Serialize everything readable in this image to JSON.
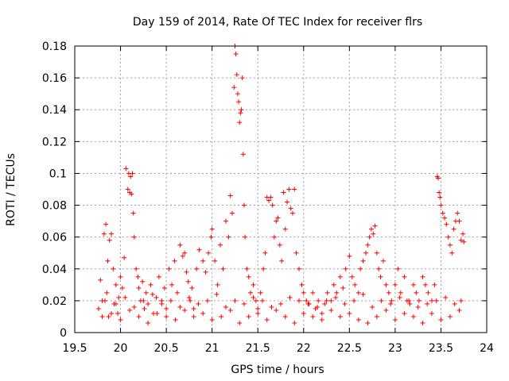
{
  "chart_data": {
    "type": "scatter",
    "title": "Day 159 of 2014, Rate Of TEC Index for receiver flrs",
    "xlabel": "GPS time / hours",
    "ylabel": "ROTI / TECUs",
    "xlim": [
      19.5,
      24
    ],
    "ylim": [
      0,
      0.18
    ],
    "x_ticks": [
      19.5,
      20,
      20.5,
      21,
      21.5,
      22,
      22.5,
      23,
      23.5,
      24
    ],
    "x_tick_labels": [
      "19.5",
      "20",
      "20.5",
      "21",
      "21.5",
      "22",
      "22.5",
      "23",
      "23.5",
      "24"
    ],
    "y_ticks": [
      0,
      0.02,
      0.04,
      0.06,
      0.08,
      0.1,
      0.12,
      0.14,
      0.16,
      0.18
    ],
    "y_tick_labels": [
      "0",
      "0.02",
      "0.04",
      "0.06",
      "0.08",
      "0.1",
      "0.12",
      "0.14",
      "0.16",
      "0.18"
    ],
    "grid": true,
    "marker": "+",
    "color": "#ff0000",
    "series": [
      {
        "name": "ROTI",
        "x": [
          19.76,
          19.78,
          19.8,
          19.82,
          19.84,
          19.85,
          19.86,
          19.87,
          19.88,
          19.9,
          19.92,
          19.93,
          19.95,
          19.97,
          19.98,
          20.0,
          20.02,
          20.04,
          20.06,
          20.08,
          20.09,
          20.1,
          20.11,
          20.12,
          20.13,
          20.14,
          20.15,
          20.17,
          20.19,
          20.2,
          20.22,
          20.24,
          20.26,
          20.28,
          20.3,
          20.33,
          20.36,
          20.39,
          20.42,
          20.45,
          20.48,
          20.5,
          20.53,
          20.56,
          20.59,
          20.62,
          20.65,
          20.68,
          20.7,
          20.72,
          20.74,
          20.76,
          20.78,
          20.8,
          20.83,
          20.86,
          20.9,
          20.93,
          20.96,
          20.99,
          21.0,
          21.03,
          21.06,
          21.09,
          21.12,
          21.15,
          21.18,
          21.2,
          21.22,
          21.24,
          21.25,
          21.26,
          21.27,
          21.28,
          21.29,
          21.3,
          21.31,
          21.32,
          21.33,
          21.34,
          21.35,
          21.36,
          21.38,
          21.4,
          21.42,
          21.45,
          21.48,
          21.5,
          21.53,
          21.56,
          21.58,
          21.6,
          21.62,
          21.64,
          21.66,
          21.68,
          21.7,
          21.72,
          21.74,
          21.76,
          21.78,
          21.8,
          21.82,
          21.84,
          21.86,
          21.88,
          21.9,
          21.92,
          21.95,
          21.98,
          22.0,
          22.03,
          22.06,
          22.1,
          22.13,
          22.16,
          22.2,
          22.23,
          22.26,
          22.3,
          22.33,
          22.36,
          22.4,
          22.43,
          22.46,
          22.5,
          22.53,
          22.56,
          22.6,
          22.62,
          22.65,
          22.68,
          22.7,
          22.72,
          22.74,
          22.76,
          22.78,
          22.8,
          22.82,
          22.84,
          22.87,
          22.9,
          22.93,
          22.96,
          23.0,
          23.03,
          23.06,
          23.1,
          23.13,
          23.16,
          23.2,
          23.23,
          23.26,
          23.3,
          23.33,
          23.36,
          23.4,
          23.43,
          23.46,
          23.47,
          23.48,
          23.49,
          23.5,
          23.52,
          23.54,
          23.56,
          23.58,
          23.6,
          23.62,
          23.64,
          23.66,
          23.68,
          23.7,
          23.72,
          23.74,
          23.75,
          19.8,
          19.9,
          20.0,
          20.1,
          20.2,
          20.3,
          20.4,
          20.5,
          20.6,
          20.7,
          20.8,
          20.9,
          21.0,
          21.1,
          21.2,
          21.3,
          21.4,
          21.5,
          21.6,
          21.7,
          21.8,
          21.9,
          22.0,
          22.1,
          22.2,
          22.3,
          22.4,
          22.5,
          22.6,
          22.7,
          22.8,
          22.9,
          23.0,
          23.1,
          23.2,
          23.3,
          23.4,
          23.5,
          23.6,
          23.7,
          19.83,
          19.95,
          20.05,
          20.15,
          20.25,
          20.35,
          20.45,
          20.55,
          20.65,
          20.75,
          20.85,
          20.95,
          21.05,
          21.15,
          21.25,
          21.35,
          21.45,
          21.55,
          21.65,
          21.75,
          21.85,
          21.95,
          22.05,
          22.15,
          22.25,
          22.35,
          22.45,
          22.55,
          22.65,
          22.75,
          22.85,
          22.95,
          23.05,
          23.15,
          23.25,
          23.35,
          23.45,
          23.55,
          23.65,
          23.72
        ],
        "y": [
          0.015,
          0.033,
          0.02,
          0.062,
          0.068,
          0.025,
          0.045,
          0.01,
          0.058,
          0.062,
          0.04,
          0.018,
          0.03,
          0.012,
          0.022,
          0.035,
          0.028,
          0.047,
          0.103,
          0.09,
          0.1,
          0.088,
          0.098,
          0.087,
          0.1,
          0.075,
          0.06,
          0.04,
          0.035,
          0.028,
          0.02,
          0.032,
          0.015,
          0.025,
          0.018,
          0.03,
          0.012,
          0.022,
          0.035,
          0.02,
          0.028,
          0.015,
          0.04,
          0.03,
          0.045,
          0.025,
          0.055,
          0.048,
          0.05,
          0.038,
          0.032,
          0.02,
          0.028,
          0.015,
          0.04,
          0.052,
          0.045,
          0.038,
          0.05,
          0.06,
          0.065,
          0.045,
          0.03,
          0.055,
          0.04,
          0.07,
          0.06,
          0.086,
          0.075,
          0.154,
          0.18,
          0.175,
          0.162,
          0.15,
          0.145,
          0.132,
          0.138,
          0.14,
          0.16,
          0.112,
          0.08,
          0.06,
          0.04,
          0.035,
          0.025,
          0.03,
          0.02,
          0.015,
          0.025,
          0.04,
          0.05,
          0.085,
          0.083,
          0.085,
          0.08,
          0.06,
          0.07,
          0.072,
          0.055,
          0.045,
          0.088,
          0.065,
          0.082,
          0.09,
          0.078,
          0.075,
          0.09,
          0.05,
          0.04,
          0.03,
          0.025,
          0.02,
          0.018,
          0.025,
          0.015,
          0.02,
          0.012,
          0.018,
          0.025,
          0.02,
          0.03,
          0.025,
          0.035,
          0.028,
          0.04,
          0.048,
          0.035,
          0.03,
          0.025,
          0.04,
          0.045,
          0.05,
          0.055,
          0.06,
          0.065,
          0.062,
          0.067,
          0.05,
          0.04,
          0.035,
          0.045,
          0.03,
          0.025,
          0.02,
          0.03,
          0.04,
          0.025,
          0.035,
          0.02,
          0.018,
          0.03,
          0.025,
          0.02,
          0.035,
          0.03,
          0.025,
          0.02,
          0.03,
          0.098,
          0.097,
          0.088,
          0.085,
          0.08,
          0.075,
          0.072,
          0.068,
          0.06,
          0.055,
          0.05,
          0.065,
          0.07,
          0.075,
          0.07,
          0.058,
          0.062,
          0.057,
          0.01,
          0.012,
          0.008,
          0.014,
          0.01,
          0.006,
          0.012,
          0.01,
          0.008,
          0.014,
          0.01,
          0.012,
          0.008,
          0.01,
          0.014,
          0.006,
          0.01,
          0.012,
          0.008,
          0.014,
          0.01,
          0.006,
          0.012,
          0.01,
          0.008,
          0.014,
          0.01,
          0.012,
          0.008,
          0.006,
          0.01,
          0.014,
          0.008,
          0.012,
          0.01,
          0.006,
          0.012,
          0.008,
          0.01,
          0.014,
          0.02,
          0.018,
          0.022,
          0.016,
          0.02,
          0.024,
          0.018,
          0.02,
          0.016,
          0.022,
          0.018,
          0.02,
          0.024,
          0.016,
          0.02,
          0.018,
          0.022,
          0.02,
          0.016,
          0.018,
          0.022,
          0.02,
          0.018,
          0.016,
          0.02,
          0.022,
          0.018,
          0.02,
          0.024,
          0.016,
          0.02,
          0.018,
          0.022,
          0.02,
          0.016,
          0.018,
          0.02,
          0.022,
          0.018,
          0.02
        ]
      }
    ]
  }
}
